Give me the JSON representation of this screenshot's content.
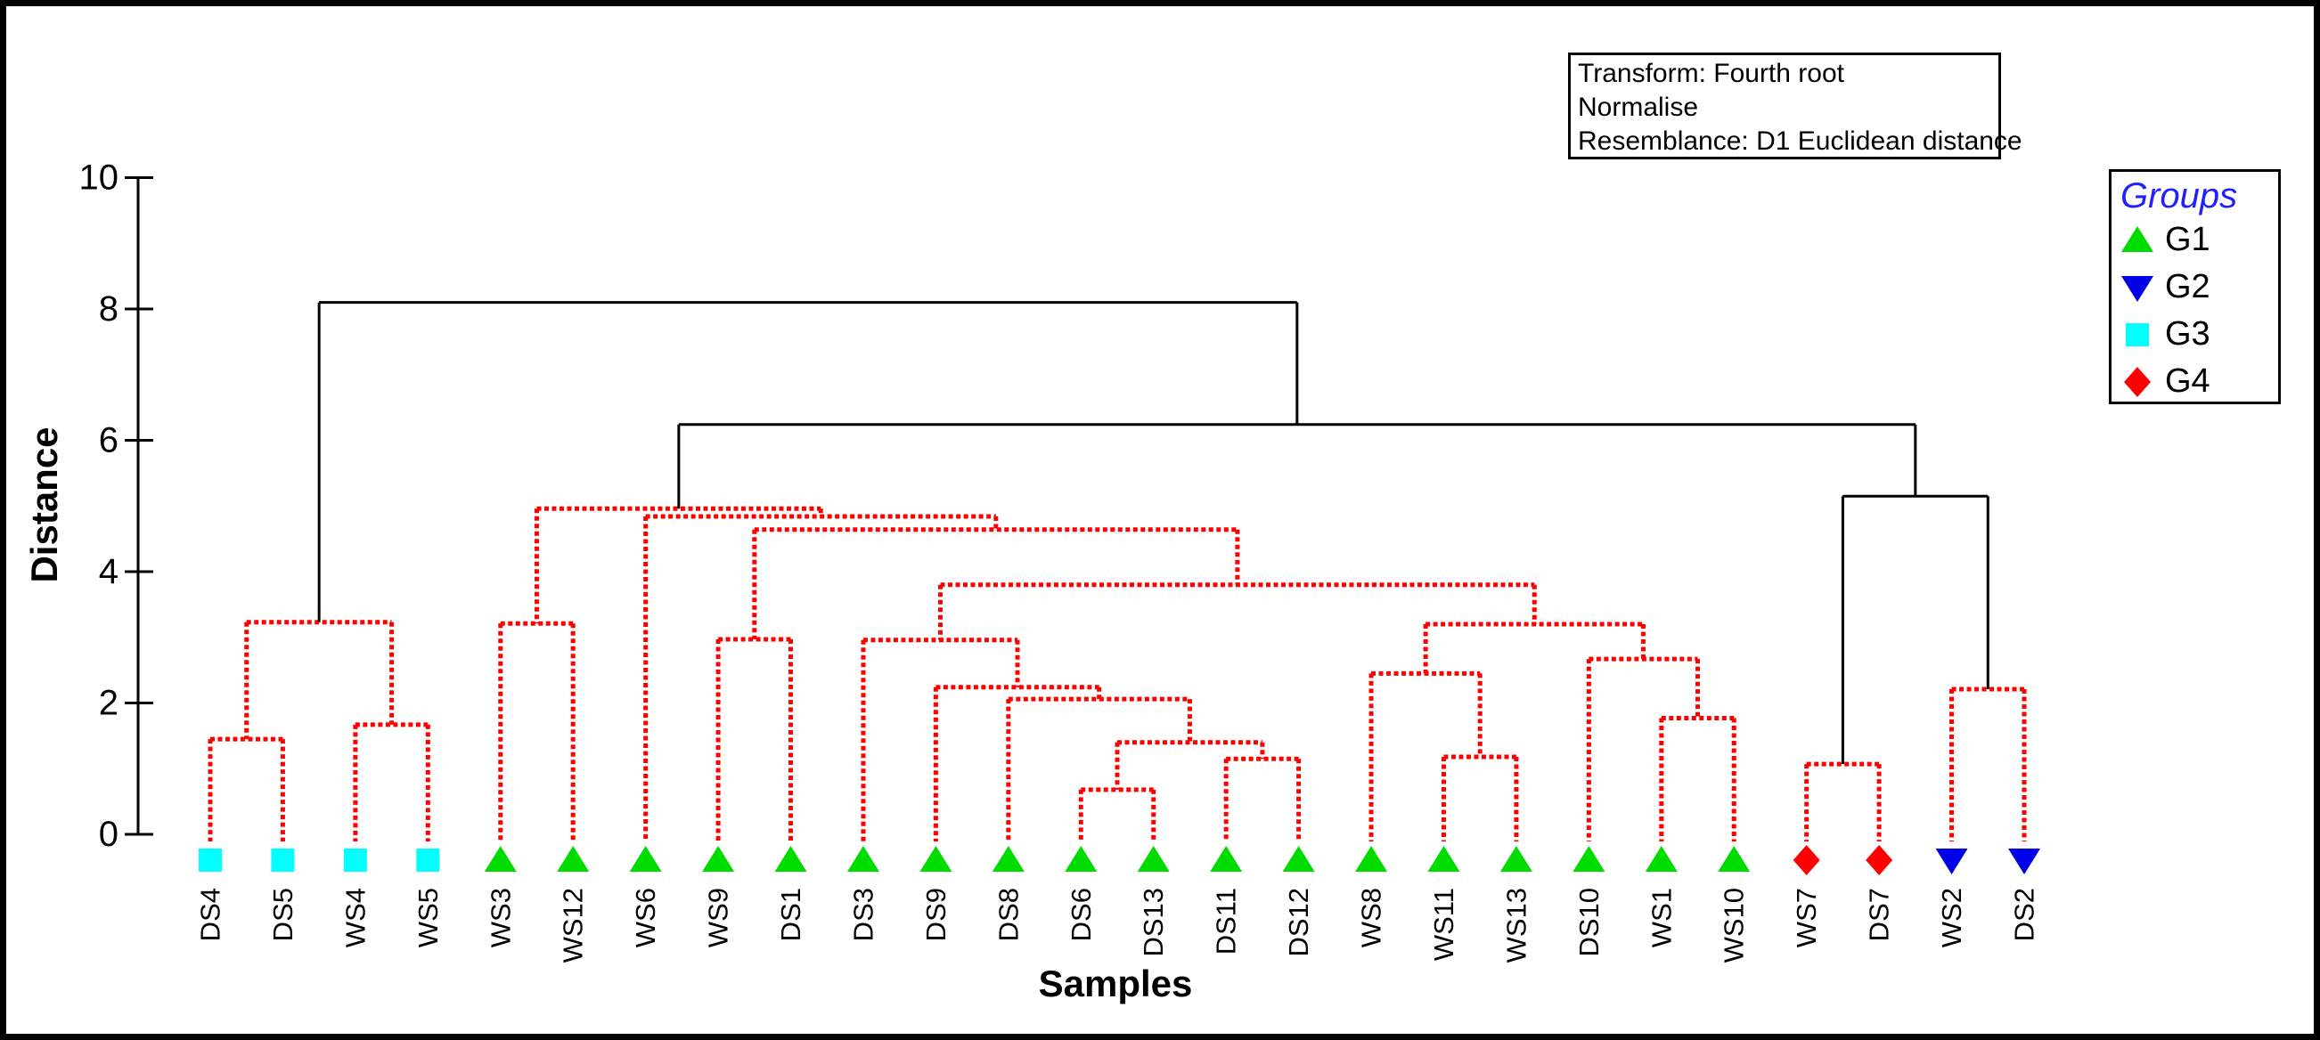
{
  "figure": {
    "annotation_box": {
      "lines": [
        "Transform: Fourth root",
        "Normalise",
        "Resemblance: D1 Euclidean distance"
      ]
    },
    "legend": {
      "title": "Groups",
      "title_color": "#1F1FFF",
      "items": [
        {
          "label": "G1",
          "shape": "triangle-up",
          "color": "#00DC00"
        },
        {
          "label": "G2",
          "shape": "triangle-down",
          "color": "#0000E6"
        },
        {
          "label": "G3",
          "shape": "square",
          "color": "#00FFFF"
        },
        {
          "label": "G4",
          "shape": "diamond",
          "color": "#FF0000"
        }
      ]
    }
  },
  "chart_data": {
    "type": "dendrogram",
    "title": "",
    "xlabel": "Samples",
    "ylabel": "Distance",
    "ylim": [
      0,
      10
    ],
    "yticks": [
      0,
      2,
      4,
      6,
      8,
      10
    ],
    "grid": false,
    "legend_position": "upper-right",
    "line_colors": {
      "significant": "#FF0000",
      "nonsignificant": "#000000"
    },
    "line_styles": {
      "significant": "dotted",
      "nonsignificant": "solid"
    },
    "samples": [
      {
        "label": "DS4",
        "group": "G3"
      },
      {
        "label": "DS5",
        "group": "G3"
      },
      {
        "label": "WS4",
        "group": "G3"
      },
      {
        "label": "WS5",
        "group": "G3"
      },
      {
        "label": "WS3",
        "group": "G1"
      },
      {
        "label": "WS12",
        "group": "G1"
      },
      {
        "label": "WS6",
        "group": "G1"
      },
      {
        "label": "WS9",
        "group": "G1"
      },
      {
        "label": "DS1",
        "group": "G1"
      },
      {
        "label": "DS3",
        "group": "G1"
      },
      {
        "label": "DS9",
        "group": "G1"
      },
      {
        "label": "DS8",
        "group": "G1"
      },
      {
        "label": "DS6",
        "group": "G1"
      },
      {
        "label": "DS13",
        "group": "G1"
      },
      {
        "label": "DS11",
        "group": "G1"
      },
      {
        "label": "DS12",
        "group": "G1"
      },
      {
        "label": "WS8",
        "group": "G1"
      },
      {
        "label": "WS11",
        "group": "G1"
      },
      {
        "label": "WS13",
        "group": "G1"
      },
      {
        "label": "DS10",
        "group": "G1"
      },
      {
        "label": "WS1",
        "group": "G1"
      },
      {
        "label": "WS10",
        "group": "G1"
      },
      {
        "label": "WS7",
        "group": "G4"
      },
      {
        "label": "DS7",
        "group": "G4"
      },
      {
        "label": "WS2",
        "group": "G2"
      },
      {
        "label": "DS2",
        "group": "G2"
      }
    ],
    "linkage": [
      {
        "id": "A",
        "left": "DS4",
        "right": "DS5",
        "height": 1.45,
        "line": "red"
      },
      {
        "id": "B",
        "left": "WS4",
        "right": "WS5",
        "height": 1.67,
        "line": "red"
      },
      {
        "id": "C",
        "left": "A",
        "right": "B",
        "height": 3.23,
        "line": "red"
      },
      {
        "id": "D",
        "left": "WS3",
        "right": "WS12",
        "height": 3.21,
        "line": "red"
      },
      {
        "id": "F",
        "left": "DS6",
        "right": "DS13",
        "height": 0.68,
        "line": "red"
      },
      {
        "id": "G",
        "left": "DS11",
        "right": "DS12",
        "height": 1.15,
        "line": "red"
      },
      {
        "id": "H",
        "left": "F",
        "right": "G",
        "height": 1.4,
        "line": "red"
      },
      {
        "id": "I",
        "left": "DS8",
        "right": "H",
        "height": 2.06,
        "line": "red"
      },
      {
        "id": "J",
        "left": "DS9",
        "right": "I",
        "height": 2.24,
        "line": "red"
      },
      {
        "id": "K",
        "left": "DS3",
        "right": "J",
        "height": 2.96,
        "line": "red"
      },
      {
        "id": "L",
        "left": "WS11",
        "right": "WS13",
        "height": 1.18,
        "line": "red"
      },
      {
        "id": "M",
        "left": "WS8",
        "right": "L",
        "height": 2.45,
        "line": "red"
      },
      {
        "id": "N",
        "left": "WS1",
        "right": "WS10",
        "height": 1.77,
        "line": "red"
      },
      {
        "id": "O",
        "left": "DS10",
        "right": "N",
        "height": 2.67,
        "line": "red"
      },
      {
        "id": "P",
        "left": "M",
        "right": "O",
        "height": 3.2,
        "line": "red"
      },
      {
        "id": "Q",
        "left": "K",
        "right": "P",
        "height": 3.8,
        "line": "red"
      },
      {
        "id": "E",
        "left": "WS9",
        "right": "DS1",
        "height": 2.97,
        "line": "red"
      },
      {
        "id": "R",
        "left": "E",
        "right": "Q",
        "height": 4.64,
        "line": "red"
      },
      {
        "id": "S",
        "left": "WS6",
        "right": "R",
        "height": 4.84,
        "line": "red"
      },
      {
        "id": "T",
        "left": "D",
        "right": "S",
        "height": 4.96,
        "line": "red"
      },
      {
        "id": "U",
        "left": "WS7",
        "right": "DS7",
        "height": 1.07,
        "line": "red"
      },
      {
        "id": "V",
        "left": "WS2",
        "right": "DS2",
        "height": 2.21,
        "line": "red"
      },
      {
        "id": "W",
        "left": "U",
        "right": "V",
        "height": 5.15,
        "line": "black"
      },
      {
        "id": "X",
        "left": "T",
        "right": "W",
        "height": 6.24,
        "line": "black"
      },
      {
        "id": "ROOT",
        "left": "C",
        "right": "X",
        "height": 8.1,
        "line": "black"
      }
    ]
  }
}
